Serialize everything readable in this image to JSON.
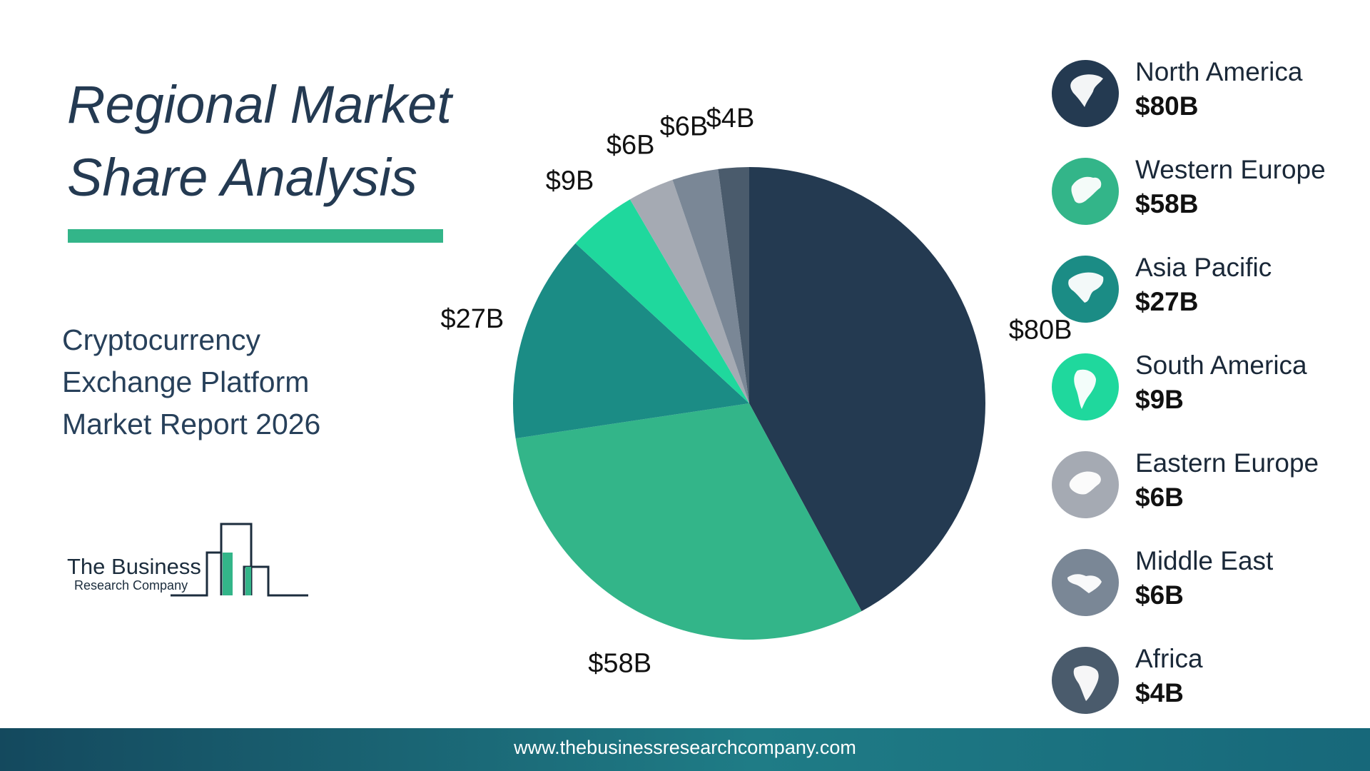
{
  "title_line1": "Regional Market",
  "title_line2": "Share Analysis",
  "subtitle_line1": "Cryptocurrency",
  "subtitle_line2": "Exchange Platform",
  "subtitle_line3": "Market Report 2026",
  "logo": {
    "line1": "The Business",
    "line2": "Research Company"
  },
  "footer_url": "www.thebusinessresearchcompany.com",
  "colors": {
    "accent": "#33b589",
    "dark": "#243a52"
  },
  "chart_data": {
    "type": "pie",
    "categories": [
      "North America",
      "Western Europe",
      "Asia Pacific",
      "South America",
      "Eastern Europe",
      "Middle East",
      "Africa"
    ],
    "values": [
      80,
      58,
      27,
      9,
      6,
      6,
      4
    ],
    "labels": [
      "$80B",
      "$58B",
      "$27B",
      "$9B",
      "$6B",
      "$6B",
      "$4B"
    ],
    "unit": "$B",
    "colors": [
      "#243a51",
      "#33b589",
      "#1b8c85",
      "#1fd89d",
      "#a5aab3",
      "#7a8796",
      "#4a5b6c"
    ],
    "start": "top, clockwise"
  },
  "legend": [
    {
      "name": "North America",
      "value": "$80B",
      "icon": "north-america-globe-icon",
      "color": "#243a51"
    },
    {
      "name": "Western Europe",
      "value": "$58B",
      "icon": "western-europe-globe-icon",
      "color": "#33b589"
    },
    {
      "name": "Asia Pacific",
      "value": "$27B",
      "icon": "asia-pacific-globe-icon",
      "color": "#1b8c85"
    },
    {
      "name": "South America",
      "value": "$9B",
      "icon": "south-america-globe-icon",
      "color": "#1fd89d"
    },
    {
      "name": "Eastern Europe",
      "value": "$6B",
      "icon": "eastern-europe-globe-icon",
      "color": "#a5aab3"
    },
    {
      "name": "Middle East",
      "value": "$6B",
      "icon": "middle-east-globe-icon",
      "color": "#7a8796"
    },
    {
      "name": "Africa",
      "value": "$4B",
      "icon": "africa-globe-icon",
      "color": "#4a5b6c"
    }
  ]
}
